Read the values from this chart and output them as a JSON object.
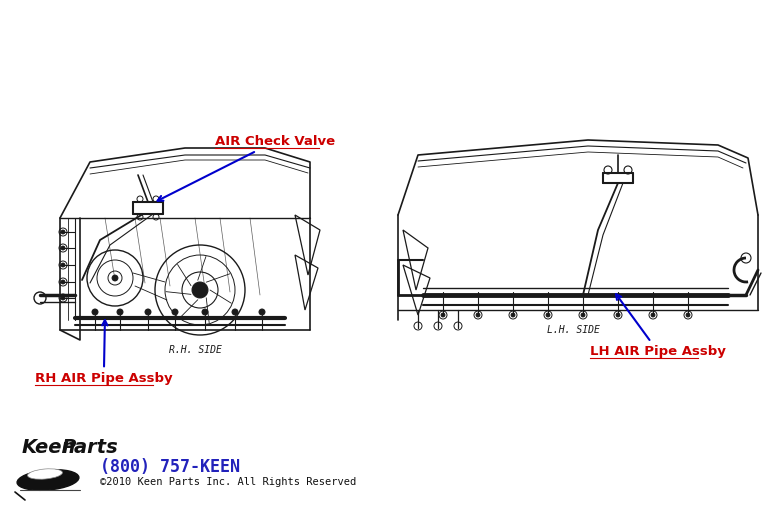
{
  "bg_color": "#ffffff",
  "label_air_check_valve": "AIR Check Valve",
  "label_rh_pipe": "RH AIR Pipe Assby",
  "label_lh_pipe": "LH AIR Pipe Assby",
  "label_rh_side": "R.H. SIDE",
  "label_lh_side": "L.H. SIDE",
  "label_phone": "(800) 757-KEEN",
  "label_copyright": "©2010 Keen Parts Inc. All Rights Reserved",
  "label_color_red": "#cc0000",
  "arrow_color": "#0000cc",
  "line_color": "#1a1a1a",
  "phone_color": "#2222bb"
}
